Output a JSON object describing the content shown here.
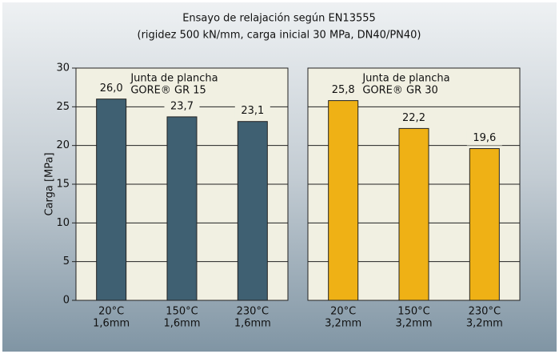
{
  "chart_data": [
    {
      "type": "bar",
      "title": "Ensayo de relajación según EN13555",
      "subtitle": "(rigidez 500 kN/mm, carga inicial 30 MPa, DN40/PN40)",
      "ylabel": "Carga [MPa]",
      "annotation": [
        "Junta de plancha",
        "GORE® GR 15"
      ],
      "categories": [
        [
          "20°C",
          "1,6mm"
        ],
        [
          "150°C",
          "1,6mm"
        ],
        [
          "230°C",
          "1,6mm"
        ]
      ],
      "values": [
        26.0,
        23.7,
        23.1
      ],
      "value_labels": [
        "26,0",
        "23,7",
        "23,1"
      ],
      "color": "#3f6072",
      "ylim": [
        0,
        30
      ],
      "yticks": [
        0,
        5,
        10,
        15,
        20,
        25,
        30
      ],
      "grid": true
    },
    {
      "type": "bar",
      "annotation": [
        "Junta de plancha",
        "GORE® GR 30"
      ],
      "categories": [
        [
          "20°C",
          "3,2mm"
        ],
        [
          "150°C",
          "3,2mm"
        ],
        [
          "230°C",
          "3,2mm"
        ]
      ],
      "values": [
        25.8,
        22.2,
        19.6
      ],
      "value_labels": [
        "25,8",
        "22,2",
        "19,6"
      ],
      "color": "#efb115",
      "ylim": [
        0,
        30
      ],
      "yticks": [
        0,
        5,
        10,
        15,
        20,
        25,
        30
      ],
      "grid": true
    }
  ]
}
